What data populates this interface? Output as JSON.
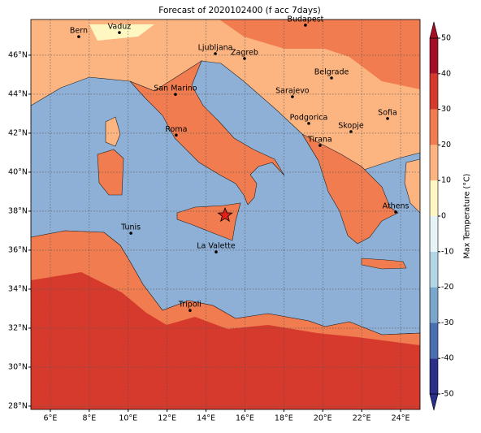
{
  "title": "Forecast of 2020102400 (f acc 7days)",
  "map": {
    "xlim": [
      5,
      25
    ],
    "ylim": [
      27.83,
      47.83
    ],
    "xticks": [
      {
        "value": 6,
        "label": "6°E"
      },
      {
        "value": 8,
        "label": "8°E"
      },
      {
        "value": 10,
        "label": "10°E"
      },
      {
        "value": 12,
        "label": "12°E"
      },
      {
        "value": 14,
        "label": "14°E"
      },
      {
        "value": 16,
        "label": "16°E"
      },
      {
        "value": 18,
        "label": "18°E"
      },
      {
        "value": 20,
        "label": "20°E"
      },
      {
        "value": 22,
        "label": "22°E"
      },
      {
        "value": 24,
        "label": "24°E"
      }
    ],
    "yticks": [
      {
        "value": 28,
        "label": "28°N"
      },
      {
        "value": 30,
        "label": "30°N"
      },
      {
        "value": 32,
        "label": "32°N"
      },
      {
        "value": 34,
        "label": "34°N"
      },
      {
        "value": 36,
        "label": "36°N"
      },
      {
        "value": 38,
        "label": "38°N"
      },
      {
        "value": 40,
        "label": "40°N"
      },
      {
        "value": 42,
        "label": "42°N"
      },
      {
        "value": 44,
        "label": "44°N"
      },
      {
        "value": 46,
        "label": "46°N"
      }
    ],
    "grid": true,
    "cities": [
      {
        "name": "Bern",
        "lon": 7.46,
        "lat": 46.95
      },
      {
        "name": "Vaduz",
        "lon": 9.55,
        "lat": 47.16
      },
      {
        "name": "Budapest",
        "lon": 19.11,
        "lat": 47.54
      },
      {
        "name": "Ljubljana",
        "lon": 14.48,
        "lat": 46.08
      },
      {
        "name": "Zagreb",
        "lon": 15.98,
        "lat": 45.83
      },
      {
        "name": "Belgrade",
        "lon": 20.45,
        "lat": 44.83
      },
      {
        "name": "San Marino",
        "lon": 12.43,
        "lat": 43.99
      },
      {
        "name": "Sarajevo",
        "lon": 18.44,
        "lat": 43.87
      },
      {
        "name": "Sofia",
        "lon": 23.33,
        "lat": 42.75
      },
      {
        "name": "Podgorica",
        "lon": 19.28,
        "lat": 42.5
      },
      {
        "name": "Skopje",
        "lon": 21.45,
        "lat": 42.08
      },
      {
        "name": "Roma",
        "lon": 12.47,
        "lat": 41.9
      },
      {
        "name": "Tirana",
        "lon": 19.86,
        "lat": 41.37
      },
      {
        "name": "Athens",
        "lon": 23.75,
        "lat": 37.96
      },
      {
        "name": "Tunis",
        "lon": 10.14,
        "lat": 36.87
      },
      {
        "name": "La Valette",
        "lon": 14.52,
        "lat": 35.91
      },
      {
        "name": "Tripoli",
        "lon": 13.18,
        "lat": 32.91
      }
    ],
    "marker": {
      "lon": 14.98,
      "lat": 37.79,
      "color": "#e0201b"
    }
  },
  "colorbar": {
    "label": "Max Temperature (°C)",
    "lim": [
      -50,
      50
    ],
    "ticks": [
      -50,
      -40,
      -30,
      -20,
      -10,
      0,
      10,
      20,
      30,
      40,
      50
    ],
    "colors": [
      "#2a2f8a",
      "#4a6fb0",
      "#7aa6cc",
      "#b3d5e6",
      "#e6f4f7",
      "#fff7c2",
      "#fcb581",
      "#f07c4f",
      "#d63a2c",
      "#a50f26"
    ]
  }
}
